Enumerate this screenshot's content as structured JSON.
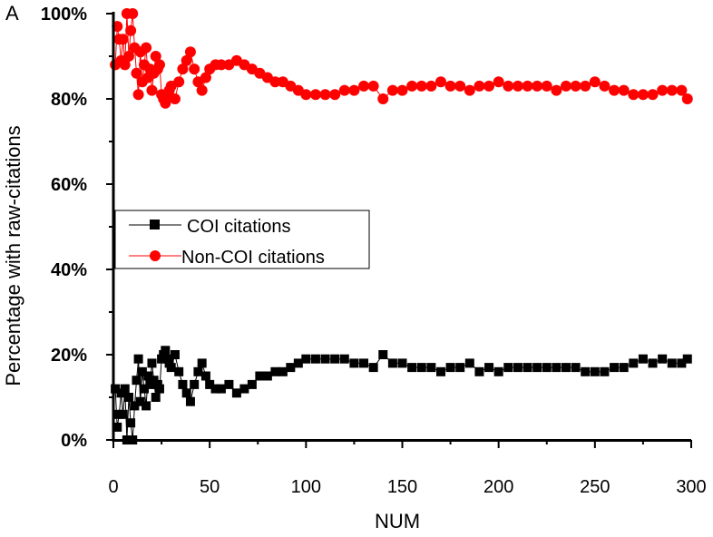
{
  "chart_data": {
    "type": "scatter",
    "panel_label": "A",
    "title": "",
    "xlabel": "NUM",
    "ylabel": "Percentage with raw-citations",
    "xlim": [
      0,
      300
    ],
    "ylim": [
      0,
      100
    ],
    "x_ticks": [
      0,
      50,
      100,
      150,
      200,
      250,
      300
    ],
    "x_tick_labels": [
      "0",
      "50",
      "100",
      "150",
      "200",
      "250",
      "300"
    ],
    "y_ticks": [
      0,
      20,
      40,
      60,
      80,
      100
    ],
    "y_tick_labels": [
      "0%",
      "20%",
      "40%",
      "60%",
      "80%",
      "100%"
    ],
    "grid": false,
    "legend_position": "center-left",
    "series": [
      {
        "name": "COI citations",
        "color": "#000000",
        "marker": "square",
        "x": [
          1,
          2,
          3,
          4,
          5,
          6,
          7,
          8,
          9,
          10,
          11,
          12,
          13,
          14,
          15,
          16,
          17,
          18,
          19,
          20,
          21,
          22,
          23,
          24,
          25,
          26,
          27,
          28,
          29,
          30,
          32,
          34,
          36,
          38,
          40,
          42,
          44,
          46,
          48,
          50,
          53,
          56,
          60,
          64,
          68,
          72,
          76,
          80,
          84,
          88,
          92,
          96,
          100,
          105,
          110,
          115,
          120,
          125,
          130,
          135,
          140,
          145,
          150,
          155,
          160,
          165,
          170,
          175,
          180,
          185,
          190,
          195,
          200,
          205,
          210,
          215,
          220,
          225,
          230,
          235,
          240,
          245,
          250,
          255,
          260,
          265,
          270,
          275,
          280,
          285,
          290,
          295,
          298
        ],
        "values": [
          12,
          3,
          6,
          11,
          6,
          12,
          0,
          10,
          4,
          0,
          8,
          14,
          19,
          9,
          16,
          12,
          8,
          15,
          13,
          18,
          14,
          10,
          13,
          12,
          19,
          20,
          21,
          19,
          18,
          17,
          20,
          16,
          13,
          11,
          9,
          13,
          16,
          18,
          15,
          13,
          12,
          12,
          13,
          11,
          12,
          13,
          15,
          15,
          16,
          16,
          17,
          18,
          19,
          19,
          19,
          19,
          19,
          18,
          18,
          17,
          20,
          18,
          18,
          17,
          17,
          17,
          16,
          17,
          17,
          18,
          16,
          17,
          16,
          17,
          17,
          17,
          17,
          17,
          17,
          17,
          17,
          16,
          16,
          16,
          17,
          17,
          18,
          19,
          18,
          19,
          18,
          18,
          19
        ]
      },
      {
        "name": "Non-COI citations",
        "color": "#ff0000",
        "marker": "circle",
        "x": [
          1,
          2,
          3,
          4,
          5,
          6,
          7,
          8,
          9,
          10,
          11,
          12,
          13,
          14,
          15,
          16,
          17,
          18,
          19,
          20,
          21,
          22,
          23,
          24,
          25,
          26,
          27,
          28,
          29,
          30,
          32,
          34,
          36,
          38,
          40,
          42,
          44,
          46,
          48,
          50,
          53,
          56,
          60,
          64,
          68,
          72,
          76,
          80,
          84,
          88,
          92,
          96,
          100,
          105,
          110,
          115,
          120,
          125,
          130,
          135,
          140,
          145,
          150,
          155,
          160,
          165,
          170,
          175,
          180,
          185,
          190,
          195,
          200,
          205,
          210,
          215,
          220,
          225,
          230,
          235,
          240,
          245,
          250,
          255,
          260,
          265,
          270,
          275,
          280,
          285,
          290,
          295,
          298
        ],
        "values": [
          88,
          97,
          94,
          89,
          94,
          88,
          100,
          90,
          96,
          100,
          92,
          86,
          81,
          91,
          84,
          88,
          92,
          85,
          87,
          82,
          86,
          90,
          87,
          88,
          81,
          80,
          79,
          81,
          82,
          83,
          80,
          84,
          87,
          89,
          91,
          87,
          84,
          82,
          85,
          87,
          88,
          88,
          88,
          89,
          88,
          87,
          86,
          85,
          84,
          84,
          83,
          82,
          81,
          81,
          81,
          81,
          82,
          82,
          83,
          83,
          80,
          82,
          82,
          83,
          83,
          83,
          84,
          83,
          83,
          82,
          83,
          83,
          84,
          83,
          83,
          83,
          83,
          83,
          82,
          83,
          83,
          83,
          84,
          83,
          82,
          82,
          81,
          81,
          81,
          82,
          82,
          82,
          80
        ]
      }
    ]
  }
}
